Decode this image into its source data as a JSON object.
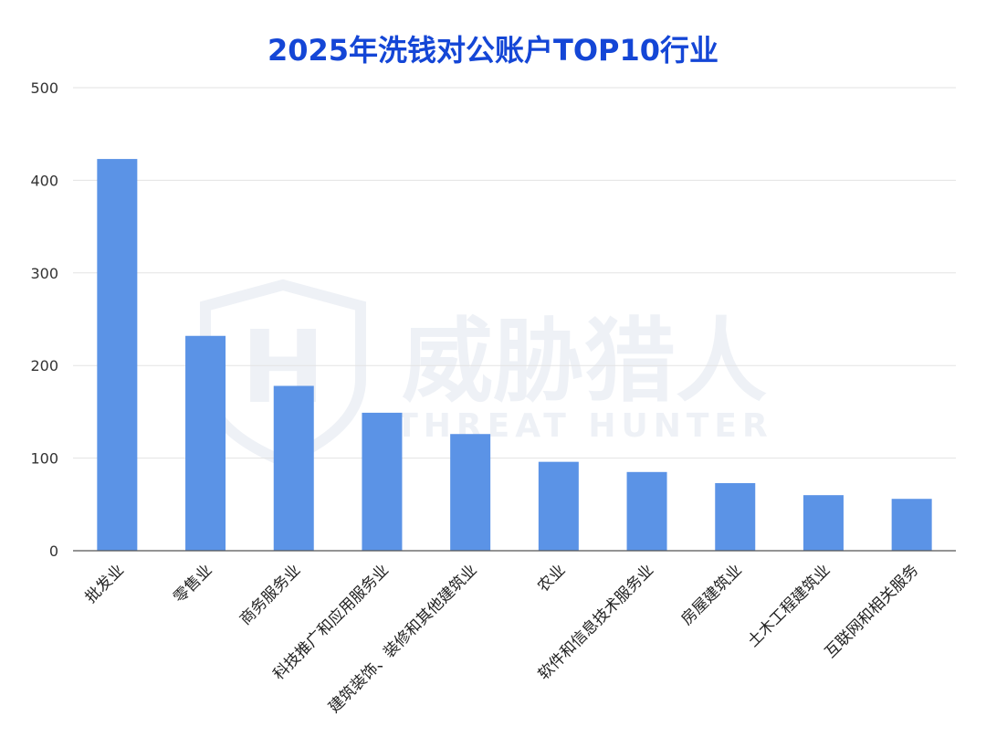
{
  "chart_data": {
    "type": "bar",
    "title": "2025年洗钱对公账户TOP10行业",
    "categories": [
      "批发业",
      "零售业",
      "商务服务业",
      "科技推广和应用服务业",
      "建筑装饰、装修和其他建筑业",
      "农业",
      "软件和信息技术服务业",
      "房屋建筑业",
      "土木工程建筑业",
      "互联网和相关服务"
    ],
    "values": [
      423,
      232,
      178,
      149,
      126,
      96,
      85,
      73,
      60,
      56
    ],
    "ylim": [
      0,
      500
    ],
    "yticks": [
      0,
      100,
      200,
      300,
      400,
      500
    ],
    "xlabel": "",
    "ylabel": "",
    "grid": true,
    "bar_color": "#5b93e6"
  },
  "watermark": {
    "main": "威胁猎人",
    "sub": "THREAT HUNTER",
    "logo_letter": "H",
    "color": "#eef1f6"
  },
  "colors": {
    "title": "#1446d6",
    "grid": "#e3e3e3",
    "axis": "#555555"
  }
}
